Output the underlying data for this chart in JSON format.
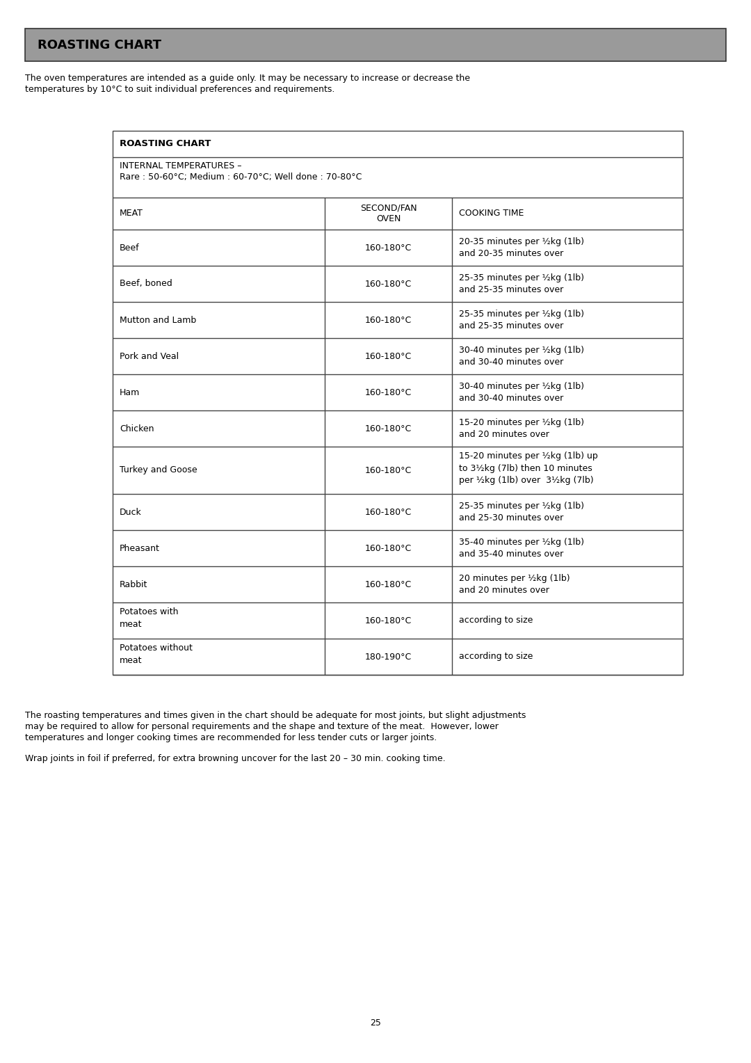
{
  "title": "ROASTING CHART",
  "title_bg_color": "#9a9a9a",
  "title_text_color": "#000000",
  "page_bg_color": "#ffffff",
  "intro_line1": "The oven temperatures are intended as a guide only. It may be necessary to increase or decrease the",
  "intro_line2": "temperatures by 10°C to suit individual preferences and requirements.",
  "table_title": "ROASTING CHART",
  "internal_temp_line1": "INTERNAL TEMPERATURES –",
  "internal_temp_line2": "Rare : 50-60°C; Medium : 60-70°C; Well done : 70-80°C",
  "col_headers": [
    "MEAT",
    "SECOND/FAN\nOVEN",
    "COOKING TIME"
  ],
  "rows": [
    [
      "Beef",
      "160-180°C",
      "20-35 minutes per ½kg (1lb)\nand 20-35 minutes over"
    ],
    [
      "Beef, boned",
      "160-180°C",
      "25-35 minutes per ½kg (1lb)\nand 25-35 minutes over"
    ],
    [
      "Mutton and Lamb",
      "160-180°C",
      "25-35 minutes per ½kg (1lb)\nand 25-35 minutes over"
    ],
    [
      "Pork and Veal",
      "160-180°C",
      "30-40 minutes per ½kg (1lb)\nand 30-40 minutes over"
    ],
    [
      "Ham",
      "160-180°C",
      "30-40 minutes per ½kg (1lb)\nand 30-40 minutes over"
    ],
    [
      "Chicken",
      "160-180°C",
      "15-20 minutes per ½kg (1lb)\nand 20 minutes over"
    ],
    [
      "Turkey and Goose",
      "160-180°C",
      "15-20 minutes per ½kg (1lb) up\nto 3½kg (7lb) then 10 minutes\nper ½kg (1lb) over  3½kg (7lb)"
    ],
    [
      "Duck",
      "160-180°C",
      "25-35 minutes per ½kg (1lb)\nand 25-30 minutes over"
    ],
    [
      "Pheasant",
      "160-180°C",
      "35-40 minutes per ½kg (1lb)\nand 35-40 minutes over"
    ],
    [
      "Rabbit",
      "160-180°C",
      "20 minutes per ½kg (1lb)\nand 20 minutes over"
    ],
    [
      "Potatoes with\nmeat",
      "160-180°C",
      "according to size"
    ],
    [
      "Potatoes without\nmeat",
      "180-190°C",
      "according to size"
    ]
  ],
  "footer_text1_lines": [
    "The roasting temperatures and times given in the chart should be adequate for most joints, but slight adjustments",
    "may be required to allow for personal requirements and the shape and texture of the meat.  However, lower",
    "temperatures and longer cooking times are recommended for less tender cuts or larger joints."
  ],
  "footer_text2": "Wrap joints in foil if preferred, for extra browning uncover for the last 20 – 30 min. cooking time.",
  "page_number": "25",
  "font_size_body": 9.0,
  "table_border_color": "#444444"
}
